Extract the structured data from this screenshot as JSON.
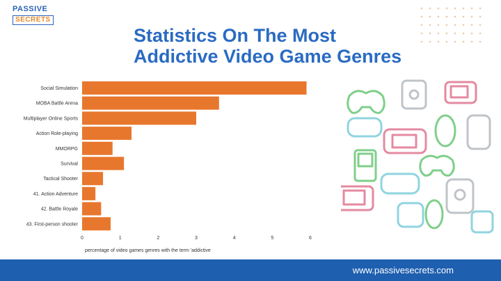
{
  "logo": {
    "line1": "PASSIVE",
    "line2": "SECRETS"
  },
  "title": {
    "line1": "Statistics On The Most",
    "line2": "Addictive Video Game Genres"
  },
  "footer": {
    "url": "www.passivesecrets.com"
  },
  "colors": {
    "bar": "#e8772e",
    "title": "#2a6bc2",
    "footer": "#1e5fb0"
  },
  "chart_data": {
    "type": "bar",
    "orientation": "horizontal",
    "title": "Statistics On The Most Addictive Video Game Genres",
    "xlabel": "percentage of video games genres with the term 'addictive",
    "ylabel": "",
    "categories": [
      "Social Simulation",
      "MOBA Battle Arena",
      "Multiplayer Online Sports",
      "Action Role-playing",
      "MMORPG",
      "Survival",
      "Tactical Shooter",
      "41. Action Adventure",
      "42. Battle Royale",
      "43. First-person shooter"
    ],
    "values": [
      5.9,
      3.6,
      3.0,
      1.3,
      0.8,
      1.1,
      0.55,
      0.35,
      0.5,
      0.75
    ],
    "xlim": [
      0,
      6
    ],
    "xticks": [
      "0",
      "1",
      "2",
      "3",
      "4",
      "5",
      "6"
    ],
    "grid": false,
    "legend": "none"
  }
}
